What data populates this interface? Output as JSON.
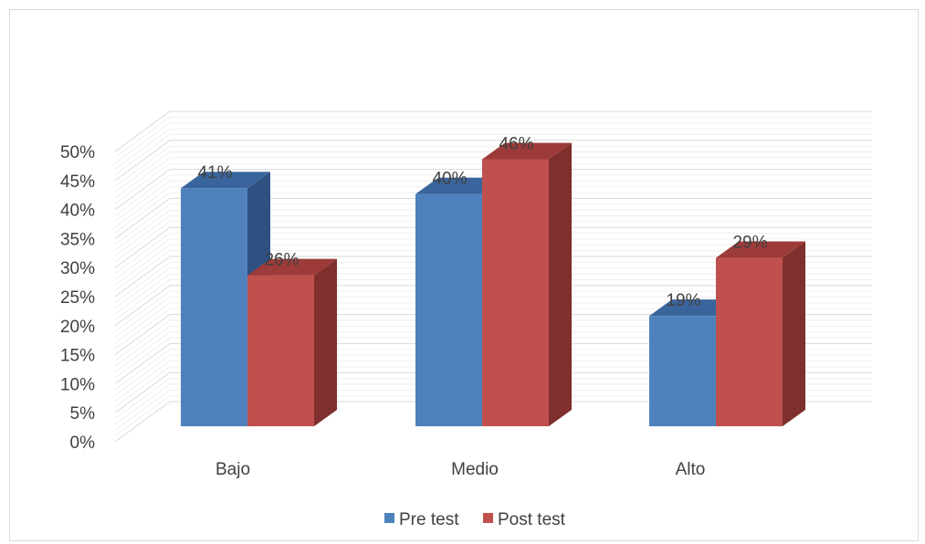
{
  "chart_data": {
    "type": "bar",
    "style": "3d-clustered-column",
    "categories": [
      "Bajo",
      "Medio",
      "Alto"
    ],
    "series": [
      {
        "name": "Pre test",
        "values": [
          41,
          40,
          19
        ],
        "labels": [
          "41%",
          "40%",
          "19%"
        ]
      },
      {
        "name": "Post test",
        "values": [
          26,
          46,
          29
        ],
        "labels": [
          "26%",
          "46%",
          "29%"
        ]
      }
    ],
    "ylim": [
      0,
      50
    ],
    "yticks": [
      0,
      5,
      10,
      15,
      20,
      25,
      30,
      35,
      40,
      45,
      50
    ],
    "ytick_labels": [
      "0%",
      "5%",
      "10%",
      "15%",
      "20%",
      "25%",
      "30%",
      "35%",
      "40%",
      "45%",
      "50%"
    ],
    "grid": true,
    "legend_position": "bottom",
    "title": "",
    "xlabel": "",
    "ylabel": ""
  },
  "colors": {
    "pre_front": "#4f81bd",
    "pre_side": "#2e5182",
    "pre_top": "#3a659c",
    "post_front": "#c0504d",
    "post_side": "#7f2f2d",
    "post_top": "#9c3b39",
    "grid": "#d9d9d9"
  }
}
